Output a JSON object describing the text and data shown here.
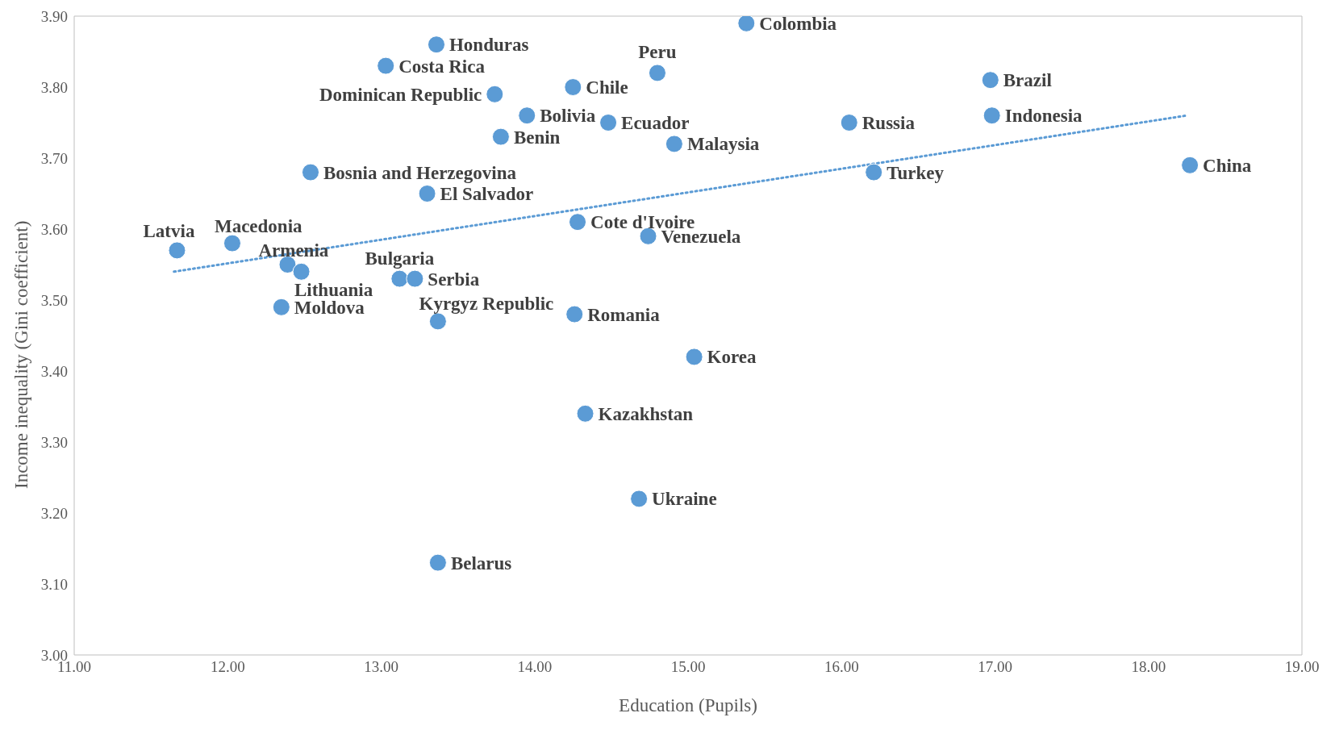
{
  "chart_data": {
    "type": "scatter",
    "xlabel": "Education (Pupils)",
    "ylabel": "Income inequality (Gini coefficient)",
    "xlim": [
      11,
      19
    ],
    "ylim": [
      3,
      3.9
    ],
    "xticks": [
      {
        "value": 11,
        "label": "11.00"
      },
      {
        "value": 12,
        "label": "12.00"
      },
      {
        "value": 13,
        "label": "13.00"
      },
      {
        "value": 14,
        "label": "14.00"
      },
      {
        "value": 15,
        "label": "15.00"
      },
      {
        "value": 16,
        "label": "16.00"
      },
      {
        "value": 17,
        "label": "17.00"
      },
      {
        "value": 18,
        "label": "18.00"
      },
      {
        "value": 19,
        "label": "19.00"
      }
    ],
    "yticks": [
      {
        "value": 3,
        "label": "3.00"
      },
      {
        "value": 3.1,
        "label": "3.10"
      },
      {
        "value": 3.2,
        "label": "3.20"
      },
      {
        "value": 3.3,
        "label": "3.30"
      },
      {
        "value": 3.4,
        "label": "3.40"
      },
      {
        "value": 3.5,
        "label": "3.50"
      },
      {
        "value": 3.6,
        "label": "3.60"
      },
      {
        "value": 3.7,
        "label": "3.70"
      },
      {
        "value": 3.8,
        "label": "3.80"
      },
      {
        "value": 3.9,
        "label": "3.90"
      }
    ],
    "grid": false,
    "legend": false,
    "series": [
      {
        "marker": "circle",
        "color": "#5b9bd5",
        "x": [
          15.38,
          13.36,
          13.03,
          13.74,
          14.25,
          14.8,
          16.97,
          13.95,
          14.48,
          13.78,
          14.91,
          16.05,
          16.98,
          18.27,
          16.21,
          12.54,
          13.3,
          14.28,
          14.74,
          11.67,
          12.03,
          12.39,
          12.48,
          13.12,
          13.22,
          12.35,
          13.37,
          14.26,
          15.04,
          14.33,
          14.68,
          13.37
        ],
        "values": [
          3.89,
          3.86,
          3.83,
          3.79,
          3.8,
          3.82,
          3.81,
          3.76,
          3.75,
          3.73,
          3.72,
          3.75,
          3.76,
          3.69,
          3.68,
          3.68,
          3.65,
          3.61,
          3.59,
          3.57,
          3.58,
          3.55,
          3.54,
          3.53,
          3.53,
          3.49,
          3.47,
          3.48,
          3.42,
          3.34,
          3.22,
          3.13
        ]
      },
      {
        "type": "line",
        "marker": "none",
        "line_style": "dotted",
        "color": "#5b9bd5",
        "x": [
          11.65,
          18.25
        ],
        "values": [
          3.54,
          3.76
        ]
      }
    ],
    "annotations": [
      {
        "text": "Colombia",
        "x": 15.38,
        "y": 3.89
      },
      {
        "text": "Honduras",
        "x": 13.36,
        "y": 3.86
      },
      {
        "text": "Costa Rica",
        "x": 13.03,
        "y": 3.83
      },
      {
        "text": "Dominican Republic",
        "x": 13.74,
        "y": 3.79
      },
      {
        "text": "Chile",
        "x": 14.25,
        "y": 3.8
      },
      {
        "text": "Peru",
        "x": 14.8,
        "y": 3.82
      },
      {
        "text": "Brazil",
        "x": 16.97,
        "y": 3.81
      },
      {
        "text": "Bolivia",
        "x": 13.95,
        "y": 3.76
      },
      {
        "text": "Ecuador",
        "x": 14.48,
        "y": 3.75
      },
      {
        "text": "Benin",
        "x": 13.78,
        "y": 3.73
      },
      {
        "text": "Malaysia",
        "x": 14.91,
        "y": 3.72
      },
      {
        "text": "Russia",
        "x": 16.05,
        "y": 3.75
      },
      {
        "text": "Indonesia",
        "x": 16.98,
        "y": 3.76
      },
      {
        "text": "China",
        "x": 18.27,
        "y": 3.69
      },
      {
        "text": "Turkey",
        "x": 16.21,
        "y": 3.68
      },
      {
        "text": "Bosnia and Herzegovina",
        "x": 12.54,
        "y": 3.68
      },
      {
        "text": "El Salvador",
        "x": 13.3,
        "y": 3.65
      },
      {
        "text": "Cote d'Ivoire",
        "x": 14.28,
        "y": 3.61
      },
      {
        "text": "Venezuela",
        "x": 14.74,
        "y": 3.59
      },
      {
        "text": "Latvia",
        "x": 11.67,
        "y": 3.57
      },
      {
        "text": "Macedonia",
        "x": 12.03,
        "y": 3.58
      },
      {
        "text": "Armenia",
        "x": 12.39,
        "y": 3.55
      },
      {
        "text": "Lithuania",
        "x": 12.48,
        "y": 3.54
      },
      {
        "text": "Bulgaria",
        "x": 13.12,
        "y": 3.53
      },
      {
        "text": "Serbia",
        "x": 13.22,
        "y": 3.53
      },
      {
        "text": "Moldova",
        "x": 12.35,
        "y": 3.49
      },
      {
        "text": "Kyrgyz Republic",
        "x": 13.37,
        "y": 3.47
      },
      {
        "text": "Romania",
        "x": 14.26,
        "y": 3.48
      },
      {
        "text": "Korea",
        "x": 15.04,
        "y": 3.42
      },
      {
        "text": "Kazakhstan",
        "x": 14.33,
        "y": 3.34
      },
      {
        "text": "Ukraine",
        "x": 14.68,
        "y": 3.22
      },
      {
        "text": "Belarus",
        "x": 13.37,
        "y": 3.13
      }
    ]
  }
}
